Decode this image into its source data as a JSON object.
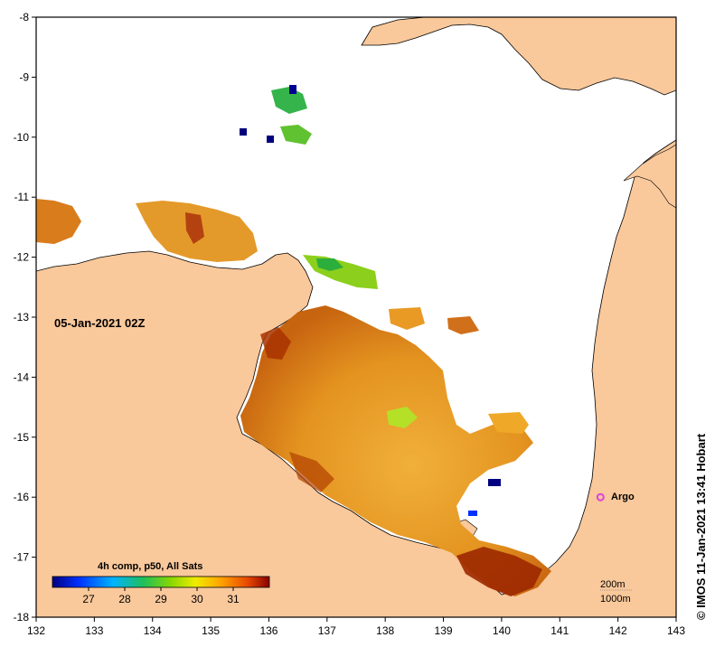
{
  "map": {
    "date_label": "05-Jan-2021 02Z",
    "credit": "© IMOS 11-Jan-2021 13:41 Hobart",
    "x_ticks": [
      "132",
      "133",
      "134",
      "135",
      "136",
      "137",
      "138",
      "139",
      "140",
      "141",
      "142",
      "143"
    ],
    "y_ticks": [
      "-8",
      "-9",
      "-10",
      "-11",
      "-12",
      "-13",
      "-14",
      "-15",
      "-16",
      "-17",
      "-18"
    ],
    "lon_range": [
      132,
      143
    ],
    "lat_range": [
      -18,
      -8
    ],
    "argo_label": "Argo",
    "argo_position": {
      "lon": 141.7,
      "lat": -16.0
    },
    "isobaths": [
      "200m",
      "1000m"
    ],
    "colorbar": {
      "title": "4h comp, p50, All Sats",
      "ticks": [
        "27",
        "28",
        "29",
        "30",
        "31"
      ],
      "range": [
        26.0,
        32.0
      ]
    },
    "colors": {
      "land": "#f9c89b",
      "ocean": "#ffffff",
      "argo": "#e040e0",
      "warm": "#e0901c",
      "hot": "#9c2800",
      "cool": "#2cae3c"
    }
  }
}
